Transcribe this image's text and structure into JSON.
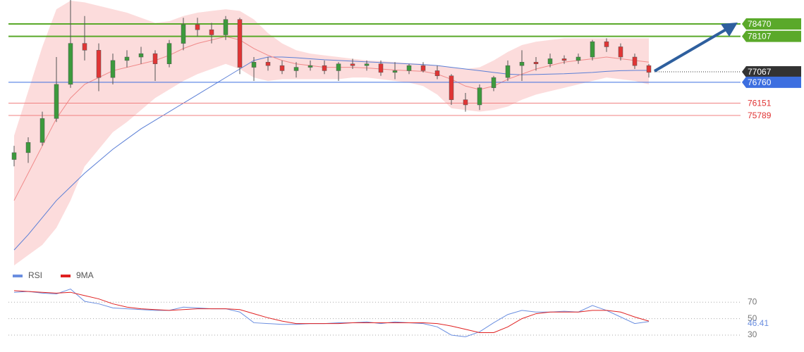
{
  "chart_data": [
    {
      "type": "candlestick",
      "ylim": [
        71750,
        79170
      ],
      "up_color": "#3c9a3c",
      "down_color": "#e03535",
      "open": [
        74500,
        74700,
        75000,
        75700,
        76700,
        77900,
        77700,
        76900,
        77400,
        77500,
        77600,
        77300,
        77900,
        78450,
        78300,
        78150,
        78600,
        77200,
        77350,
        77250,
        77100,
        77200,
        77250,
        77100,
        77300,
        77250,
        77300,
        77050,
        77100,
        77250,
        77100,
        76950,
        76250,
        76100,
        76600,
        76900,
        77250,
        77350,
        77300,
        77450,
        77400,
        77500,
        77950,
        77800,
        77500,
        77250
      ],
      "high": [
        74900,
        75150,
        75900,
        77500,
        79170,
        78700,
        77900,
        77600,
        77700,
        77800,
        77700,
        78000,
        78650,
        78650,
        78500,
        78700,
        78650,
        77500,
        77500,
        77400,
        77350,
        77400,
        77400,
        77350,
        77450,
        77400,
        77400,
        77350,
        77300,
        77350,
        77250,
        77000,
        76450,
        76700,
        76950,
        77400,
        77700,
        77500,
        77600,
        77550,
        77600,
        78000,
        78050,
        77900,
        77600,
        77300
      ],
      "low": [
        74300,
        74400,
        74900,
        75600,
        76600,
        77400,
        76500,
        76700,
        77200,
        77300,
        76800,
        77200,
        77700,
        78100,
        77900,
        78000,
        77000,
        76800,
        77100,
        77000,
        76900,
        77100,
        77000,
        76800,
        77150,
        77100,
        76950,
        76850,
        77000,
        77050,
        76850,
        76100,
        75900,
        75950,
        76500,
        76800,
        76800,
        77100,
        77200,
        77300,
        77300,
        77400,
        77650,
        77400,
        77150,
        76900
      ],
      "close": [
        74700,
        75000,
        75700,
        76700,
        77900,
        77700,
        76900,
        77400,
        77500,
        77600,
        77300,
        77900,
        78450,
        78300,
        78150,
        78600,
        77200,
        77350,
        77250,
        77100,
        77200,
        77250,
        77100,
        77300,
        77250,
        77300,
        77050,
        77100,
        77250,
        77100,
        76950,
        76250,
        76100,
        76600,
        76900,
        77250,
        77350,
        77300,
        77450,
        77400,
        77500,
        77950,
        77800,
        77500,
        77250,
        77050
      ],
      "series": [
        {
          "color": "#5b7fd6",
          "values": [
            71850,
            72300,
            72800,
            73300,
            73700,
            74100,
            74450,
            74800,
            75100,
            75400,
            75650,
            75900,
            76150,
            76400,
            76650,
            76900,
            77150,
            77400,
            77500,
            77500,
            77480,
            77450,
            77420,
            77400,
            77380,
            77360,
            77340,
            77320,
            77300,
            77280,
            77250,
            77200,
            77150,
            77100,
            77050,
            77000,
            76980,
            76990,
            77000,
            77010,
            77030,
            77050,
            77080,
            77100,
            77110,
            77110
          ]
        },
        {
          "color": "#f08a8a",
          "values": [
            73300,
            74100,
            74900,
            75700,
            76300,
            76700,
            76900,
            77100,
            77200,
            77300,
            77400,
            77550,
            77750,
            77900,
            78000,
            78100,
            78000,
            77750,
            77550,
            77400,
            77300,
            77250,
            77200,
            77200,
            77200,
            77180,
            77150,
            77120,
            77100,
            77080,
            77000,
            76850,
            76650,
            76550,
            76650,
            76850,
            77000,
            77150,
            77250,
            77350,
            77400,
            77450,
            77500,
            77450,
            77400,
            77350
          ]
        }
      ],
      "band": {
        "color": "#fbd3d3",
        "upper": [
          75200,
          76500,
          77800,
          78900,
          79150,
          79100,
          79000,
          78900,
          78800,
          78650,
          78500,
          78550,
          78700,
          78800,
          78850,
          78900,
          78850,
          78600,
          78200,
          77900,
          77700,
          77600,
          77550,
          77500,
          77450,
          77400,
          77380,
          77350,
          77320,
          77300,
          77250,
          77200,
          77150,
          77200,
          77400,
          77650,
          77850,
          77950,
          78000,
          78050,
          78050,
          78050,
          78050,
          78050,
          78050,
          78050
        ],
        "lower": [
          71400,
          71700,
          72000,
          72500,
          73300,
          74300,
          74800,
          75300,
          75600,
          75950,
          76300,
          76550,
          76800,
          77000,
          77150,
          77300,
          77150,
          76900,
          76800,
          76850,
          76850,
          76850,
          76850,
          76850,
          76900,
          76900,
          76850,
          76800,
          76750,
          76650,
          76400,
          76000,
          75950,
          75900,
          75950,
          76050,
          76250,
          76400,
          76500,
          76600,
          76700,
          76800,
          76900,
          76850,
          76800,
          76700
        ]
      },
      "levels": [
        {
          "value": 78470,
          "color": "#5aa92a",
          "line": "solid",
          "box": true
        },
        {
          "value": 78107,
          "color": "#5aa92a",
          "line": "solid",
          "box": true
        },
        {
          "value": 77067,
          "color": "#333333",
          "line": "dotted",
          "box": true
        },
        {
          "value": 76760,
          "color": "#3d6fe0",
          "line": "solid",
          "box": true
        },
        {
          "value": 76151,
          "color": "#f08080",
          "line": "solid",
          "box": false
        },
        {
          "value": 75789,
          "color": "#f08080",
          "line": "solid",
          "box": false
        }
      ]
    },
    {
      "type": "line",
      "ylim": [
        18,
        95
      ],
      "yticks": [
        30,
        50,
        70
      ],
      "grid": true,
      "series": [
        {
          "name": "RSI",
          "color": "#6a8ee0",
          "values": [
            82,
            83,
            81,
            80,
            86,
            71,
            68,
            63,
            62,
            61,
            60,
            60,
            64,
            63,
            62,
            62,
            58,
            45,
            44,
            43,
            43,
            44,
            44,
            45,
            45,
            46,
            44,
            46,
            45,
            44,
            40,
            30,
            28,
            34,
            45,
            55,
            60,
            58,
            58,
            59,
            58,
            66,
            60,
            52,
            44,
            46.41
          ]
        },
        {
          "name": "9MA",
          "color": "#e02020",
          "values": [
            84,
            83,
            82,
            81,
            82,
            78,
            74,
            68,
            64,
            62,
            61,
            60,
            61,
            62,
            62,
            62,
            61,
            56,
            51,
            47,
            44,
            44,
            44,
            44,
            45,
            45,
            45,
            45,
            45,
            45,
            44,
            41,
            37,
            33,
            33,
            40,
            50,
            56,
            58,
            58,
            58,
            60,
            60,
            58,
            52,
            47
          ]
        }
      ]
    }
  ]
}
